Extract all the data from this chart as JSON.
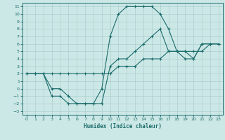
{
  "xlabel": "Humidex (Indice chaleur)",
  "bg_color": "#cce8e6",
  "grid_color": "#aacfcd",
  "line_color": "#1a6b6b",
  "xlim": [
    -0.5,
    23.5
  ],
  "ylim": [
    -3.5,
    11.5
  ],
  "xticks": [
    0,
    1,
    2,
    3,
    4,
    5,
    6,
    7,
    8,
    9,
    10,
    11,
    12,
    13,
    14,
    15,
    16,
    17,
    18,
    19,
    20,
    21,
    22,
    23
  ],
  "yticks": [
    -3,
    -2,
    -1,
    0,
    1,
    2,
    3,
    4,
    5,
    6,
    7,
    8,
    9,
    10,
    11
  ],
  "curve1_x": [
    0,
    1,
    2,
    3,
    4,
    5,
    6,
    7,
    8,
    9,
    10,
    11,
    12,
    13,
    14,
    15,
    16,
    17,
    18,
    19,
    20,
    21,
    22,
    23
  ],
  "curve1_y": [
    2,
    2,
    2,
    -1,
    -1,
    -2,
    -2,
    -2,
    -2,
    0,
    7,
    10,
    11,
    11,
    11,
    11,
    10,
    8,
    5,
    5,
    4,
    6,
    6,
    6
  ],
  "curve2_x": [
    0,
    1,
    2,
    3,
    4,
    5,
    6,
    7,
    8,
    9,
    10,
    11,
    12,
    13,
    14,
    15,
    16,
    17,
    18,
    19,
    20,
    21,
    22,
    23
  ],
  "curve2_y": [
    2,
    2,
    2,
    0,
    0,
    -1,
    -2,
    -2,
    -2,
    -2,
    3,
    4,
    4,
    5,
    6,
    7,
    8,
    5,
    5,
    4,
    4,
    6,
    6,
    6
  ],
  "line3_x": [
    0,
    1,
    2,
    3,
    4,
    5,
    6,
    7,
    8,
    9,
    10,
    11,
    12,
    13,
    14,
    15,
    16,
    17,
    18,
    19,
    20,
    21,
    22,
    23
  ],
  "line3_y": [
    2,
    2,
    2,
    2,
    2,
    2,
    2,
    2,
    2,
    2,
    2,
    3,
    3,
    3,
    4,
    4,
    4,
    5,
    5,
    5,
    5,
    5,
    6,
    6
  ]
}
